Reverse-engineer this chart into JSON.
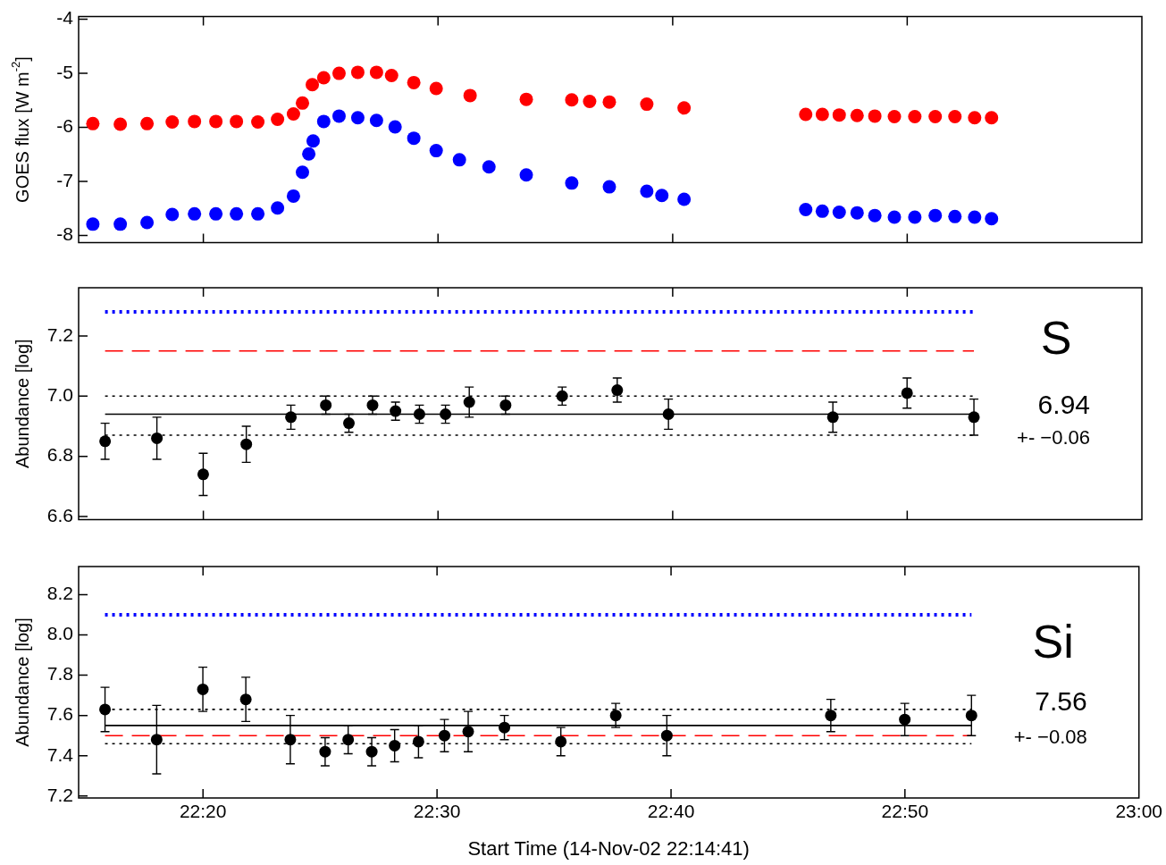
{
  "chart_data": [
    {
      "type": "scatter",
      "ylabel": "GOES flux [W m$^{-2}$]",
      "xlim": [
        22.2447,
        23.0
      ],
      "xticks": [
        {
          "value": 22.3333,
          "label": null
        },
        {
          "value": 22.5,
          "label": null
        },
        {
          "value": 22.6667,
          "label": null
        },
        {
          "value": 22.8333,
          "label": null
        },
        {
          "value": 23.0,
          "label": null
        }
      ],
      "ylim": [
        -8.13,
        -3.95
      ],
      "yticks": [
        -8,
        -7,
        -6,
        -5,
        -4
      ],
      "tick_labels": "y",
      "marker": "circle",
      "series": [
        {
          "color": "#ff0000",
          "x": [
            22.2548,
            22.2743,
            22.2933,
            22.3112,
            22.327,
            22.3422,
            22.3568,
            22.372,
            22.386,
            22.3973,
            22.4037,
            22.4107,
            22.4188,
            22.4297,
            22.443,
            22.4563,
            22.467,
            22.4828,
            22.4987,
            22.5228,
            22.5627,
            22.595,
            22.6077,
            22.6217,
            22.6483,
            22.6748,
            22.7612,
            22.773,
            22.785,
            22.7977,
            22.8103,
            22.8242,
            22.8387,
            22.8532,
            22.8672,
            22.8812,
            22.8932
          ],
          "values": [
            -5.93,
            -5.94,
            -5.93,
            -5.9,
            -5.89,
            -5.89,
            -5.89,
            -5.9,
            -5.85,
            -5.75,
            -5.55,
            -5.21,
            -5.08,
            -5.0,
            -4.98,
            -4.98,
            -5.04,
            -5.17,
            -5.28,
            -5.41,
            -5.48,
            -5.49,
            -5.52,
            -5.53,
            -5.57,
            -5.64,
            -5.76,
            -5.76,
            -5.77,
            -5.78,
            -5.79,
            -5.8,
            -5.8,
            -5.8,
            -5.8,
            -5.82,
            -5.82
          ]
        },
        {
          "color": "#0000ff",
          "x": [
            22.2548,
            22.2743,
            22.2933,
            22.3112,
            22.327,
            22.3422,
            22.3568,
            22.372,
            22.386,
            22.3973,
            22.4037,
            22.4082,
            22.4113,
            22.4188,
            22.4297,
            22.443,
            22.4563,
            22.4695,
            22.4828,
            22.4987,
            22.5152,
            22.5362,
            22.5627,
            22.595,
            22.6217,
            22.6483,
            22.659,
            22.6748,
            22.7612,
            22.773,
            22.785,
            22.7977,
            22.8103,
            22.8242,
            22.8387,
            22.8532,
            22.8672,
            22.8812,
            22.8932
          ],
          "values": [
            -7.79,
            -7.79,
            -7.76,
            -7.61,
            -7.6,
            -7.6,
            -7.6,
            -7.6,
            -7.49,
            -7.27,
            -6.83,
            -6.49,
            -6.25,
            -5.89,
            -5.79,
            -5.82,
            -5.87,
            -5.99,
            -6.2,
            -6.43,
            -6.6,
            -6.73,
            -6.88,
            -7.03,
            -7.1,
            -7.18,
            -7.26,
            -7.33,
            -7.52,
            -7.55,
            -7.57,
            -7.58,
            -7.63,
            -7.66,
            -7.66,
            -7.63,
            -7.65,
            -7.66,
            -7.69
          ]
        }
      ]
    },
    {
      "type": "scatter",
      "ylabel": "Abundance [log]",
      "xlim": [
        22.2447,
        23.0
      ],
      "xticks": [
        {
          "value": 22.3333,
          "label": null
        },
        {
          "value": 22.5,
          "label": null
        },
        {
          "value": 22.6667,
          "label": null
        },
        {
          "value": 22.8333,
          "label": null
        },
        {
          "value": 23.0,
          "label": null
        }
      ],
      "ylim": [
        6.59,
        7.36
      ],
      "yticks": [
        6.6,
        6.8,
        {
          "value": 7.0,
          "label": "7.0"
        },
        7.2
      ],
      "tick_labels": "y",
      "marker": "circle",
      "annotations": [
        "S",
        "6.94",
        "+- −0.06"
      ],
      "ref_lines": [
        {
          "axis": "y",
          "value": 7.28,
          "color": "#0000ff",
          "line_style": "dotted"
        },
        {
          "axis": "y",
          "value": 7.15,
          "color": "#ff0000",
          "line_style": "dashed"
        },
        {
          "axis": "y",
          "value": 6.94,
          "color": "#000000",
          "line_style": "solid"
        },
        {
          "axis": "y",
          "value": 7.0,
          "color": "#000000",
          "line_style": "dotted"
        },
        {
          "axis": "y",
          "value": 6.87,
          "color": "#000000",
          "line_style": "dotted"
        }
      ],
      "series": [
        {
          "color": "#000000",
          "x": [
            22.2635,
            22.3003,
            22.3332,
            22.3638,
            22.3955,
            22.4203,
            22.4367,
            22.4535,
            22.4698,
            22.4868,
            22.5053,
            22.5222,
            22.548,
            22.5882,
            22.6273,
            22.6637,
            22.7805,
            22.8332,
            22.8807
          ],
          "values": [
            6.85,
            6.86,
            6.74,
            6.84,
            6.93,
            6.97,
            6.91,
            6.97,
            6.95,
            6.94,
            6.94,
            6.98,
            6.97,
            7.0,
            7.02,
            6.94,
            6.93,
            7.01,
            6.93
          ],
          "errors": [
            0.06,
            0.07,
            0.07,
            0.06,
            0.04,
            0.03,
            0.03,
            0.03,
            0.03,
            0.03,
            0.03,
            0.05,
            0.03,
            0.03,
            0.04,
            0.05,
            0.05,
            0.05,
            0.06
          ]
        }
      ]
    },
    {
      "type": "scatter",
      "ylabel": "Abundance [log]",
      "xlabel": "Start Time (14-Nov-02 22:14:41)",
      "xlim": [
        22.2447,
        23.0
      ],
      "xticks": [
        {
          "value": 22.3333,
          "label": "22:20"
        },
        {
          "value": 22.5,
          "label": "22:30"
        },
        {
          "value": 22.6667,
          "label": "22:40"
        },
        {
          "value": 22.8333,
          "label": "22:50"
        },
        {
          "value": 23.0,
          "label": "23:00"
        }
      ],
      "ylim": [
        7.19,
        8.34
      ],
      "yticks": [
        7.2,
        7.4,
        7.6,
        7.8,
        {
          "value": 8.0,
          "label": "8.0"
        },
        8.2
      ],
      "marker": "circle",
      "annotations": [
        "Si",
        "7.56",
        "+- −0.08"
      ],
      "ref_lines": [
        {
          "axis": "y",
          "value": 8.1,
          "color": "#0000ff",
          "line_style": "dotted"
        },
        {
          "axis": "y",
          "value": 7.5,
          "color": "#ff0000",
          "line_style": "dashed"
        },
        {
          "axis": "y",
          "value": 7.55,
          "color": "#000000",
          "line_style": "solid"
        },
        {
          "axis": "y",
          "value": 7.63,
          "color": "#000000",
          "line_style": "dotted"
        },
        {
          "axis": "y",
          "value": 7.46,
          "color": "#000000",
          "line_style": "dotted"
        }
      ],
      "series": [
        {
          "color": "#000000",
          "x": [
            22.2635,
            22.3003,
            22.3332,
            22.3638,
            22.3955,
            22.4203,
            22.4367,
            22.4535,
            22.4698,
            22.4868,
            22.5053,
            22.5222,
            22.548,
            22.5882,
            22.6273,
            22.6637,
            22.7805,
            22.8332,
            22.8807
          ],
          "values": [
            7.63,
            7.48,
            7.73,
            7.68,
            7.48,
            7.42,
            7.48,
            7.42,
            7.45,
            7.47,
            7.5,
            7.52,
            7.54,
            7.47,
            7.6,
            7.5,
            7.6,
            7.58,
            7.6
          ],
          "errors": [
            0.11,
            0.17,
            0.11,
            0.11,
            0.12,
            0.07,
            0.07,
            0.07,
            0.08,
            0.08,
            0.08,
            0.1,
            0.06,
            0.07,
            0.06,
            0.1,
            0.08,
            0.08,
            0.1
          ]
        }
      ]
    }
  ]
}
